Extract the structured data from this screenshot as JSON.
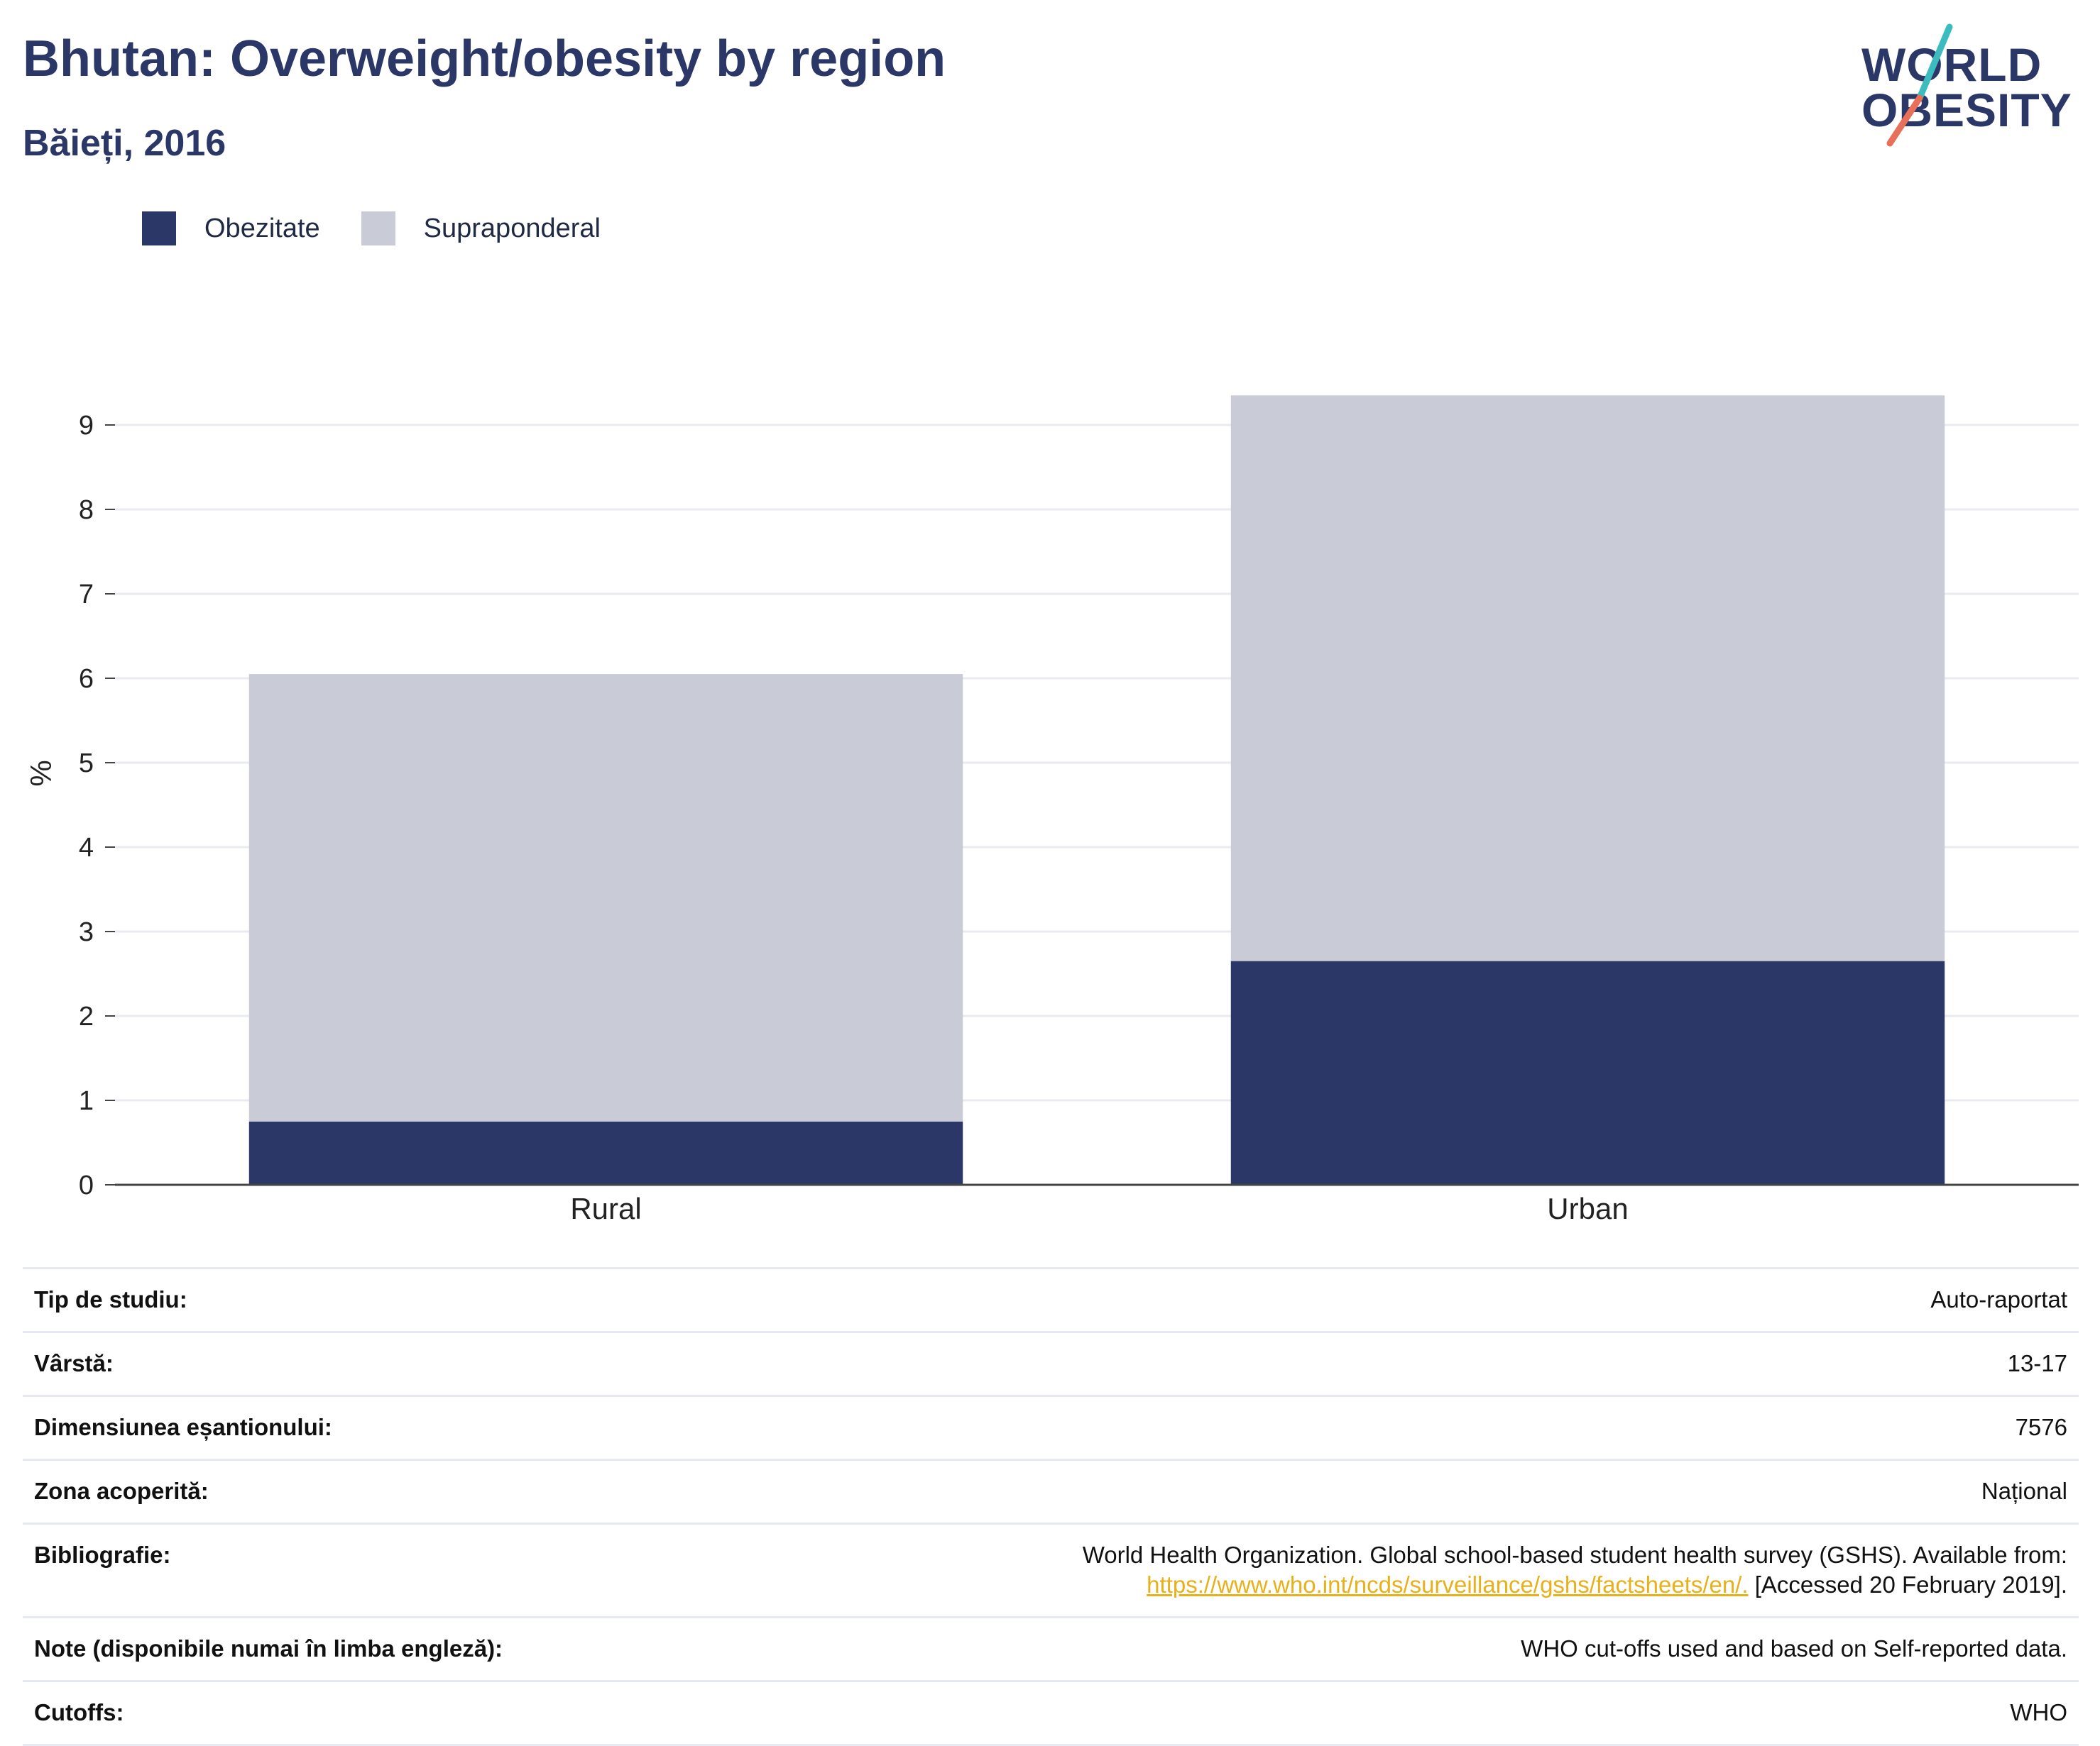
{
  "header": {
    "title": "Bhutan: Overweight/obesity by region",
    "subtitle": "Băieți, 2016"
  },
  "logo": {
    "line1": "WORLD",
    "line2": "OBESITY",
    "slash_colors": [
      "#3dbcc0",
      "#e8705a"
    ]
  },
  "legend": [
    {
      "label": "Obezitate",
      "color": "#2b3766"
    },
    {
      "label": "Supraponderal",
      "color": "#c9ccd7"
    }
  ],
  "chart_data": {
    "type": "bar",
    "stacked": true,
    "categories": [
      "Rural",
      "Urban"
    ],
    "series": [
      {
        "name": "Obezitate",
        "values": [
          0.75,
          2.65
        ],
        "color": "#2b3766"
      },
      {
        "name": "Supraponderal",
        "values": [
          5.3,
          6.7
        ],
        "color": "#c9ccd7"
      }
    ],
    "yticks": [
      0,
      1,
      2,
      3,
      4,
      5,
      6,
      7,
      8,
      9
    ],
    "ylim": [
      0,
      9.5
    ],
    "ylabel": "%",
    "xlabel": "",
    "grid": true,
    "legend_position": "top-left"
  },
  "info": [
    {
      "key": "Tip de studiu:",
      "value": "Auto-raportat"
    },
    {
      "key": "Vârstă:",
      "value": "13-17"
    },
    {
      "key": "Dimensiunea eșantionului:",
      "value": "7576"
    },
    {
      "key": "Zona acoperită:",
      "value": "Național"
    },
    {
      "key": "Bibliografie:",
      "value_line1": "World Health Organization. Global school-based student health survey (GSHS). Available from:",
      "link": "https://www.who.int/ncds/surveillance/gshs/factsheets/en/.",
      "value_tail": " [Accessed 20 February 2019]."
    },
    {
      "key": "Note (disponibile numai în limba engleză):",
      "value": "WHO cut-offs used and based on Self-reported data."
    },
    {
      "key": "Cutoffs:",
      "value": "WHO"
    }
  ]
}
